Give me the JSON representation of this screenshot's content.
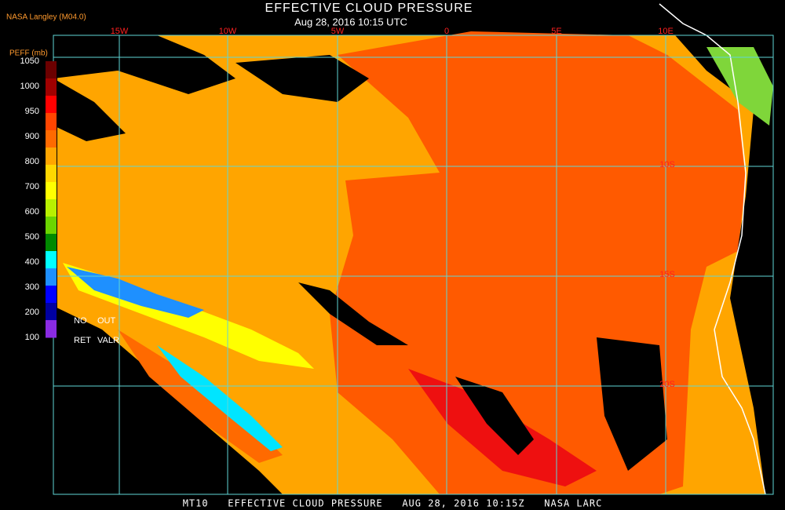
{
  "header": {
    "source": "NASA Langley (M04.0)",
    "title": "EFFECTIVE CLOUD PRESSURE",
    "subtitle": "Aug 28, 2016 10:15 UTC"
  },
  "colorbar": {
    "label": "PEFF (mb)",
    "ticks": [
      "1050",
      "1000",
      "950",
      "900",
      "800",
      "700",
      "600",
      "500",
      "400",
      "300",
      "200",
      "100"
    ],
    "no_out": [
      "NO",
      "OUT"
    ],
    "ret_valr": [
      "RET",
      "VALR"
    ]
  },
  "grid": {
    "longitudes": [
      "15W",
      "10W",
      "5W",
      "0",
      "5E",
      "10E"
    ],
    "latitudes": [
      "10S",
      "15S",
      "20S"
    ]
  },
  "footer": "MT10   EFFECTIVE CLOUD PRESSURE   AUG 28, 2016 10:15Z   NASA LARC"
}
